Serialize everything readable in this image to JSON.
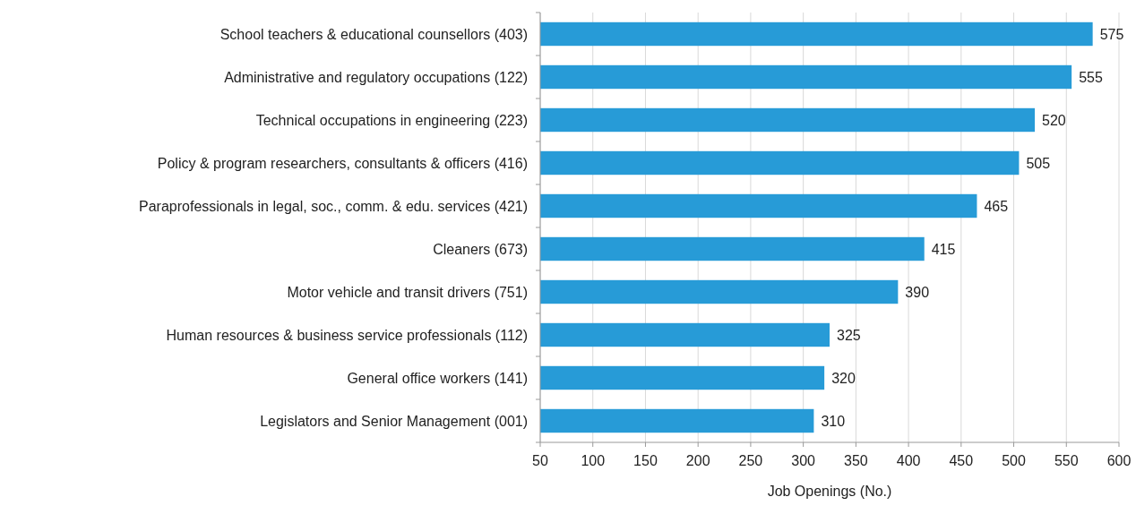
{
  "chart_data": {
    "type": "bar",
    "orientation": "horizontal",
    "xlabel": "Job Openings (No.)",
    "categories": [
      "School teachers & educational counsellors (403)",
      "Administrative and regulatory occupations (122)",
      "Technical occupations in engineering (223)",
      "Policy & program researchers, consultants & officers (416)",
      "Paraprofessionals in legal, soc., comm. & edu. services (421)",
      "Cleaners (673)",
      "Motor vehicle and transit drivers (751)",
      "Human resources & business service professionals (112)",
      "General office workers (141)",
      "Legislators and Senior Management (001)"
    ],
    "values": [
      575,
      555,
      520,
      505,
      465,
      415,
      390,
      325,
      320,
      310
    ],
    "color": "#279bd7",
    "xlim": [
      50,
      600
    ],
    "xticks": [
      50,
      100,
      150,
      200,
      250,
      300,
      350,
      400,
      450,
      500,
      550,
      600
    ],
    "grid": "x",
    "data_labels": true
  }
}
